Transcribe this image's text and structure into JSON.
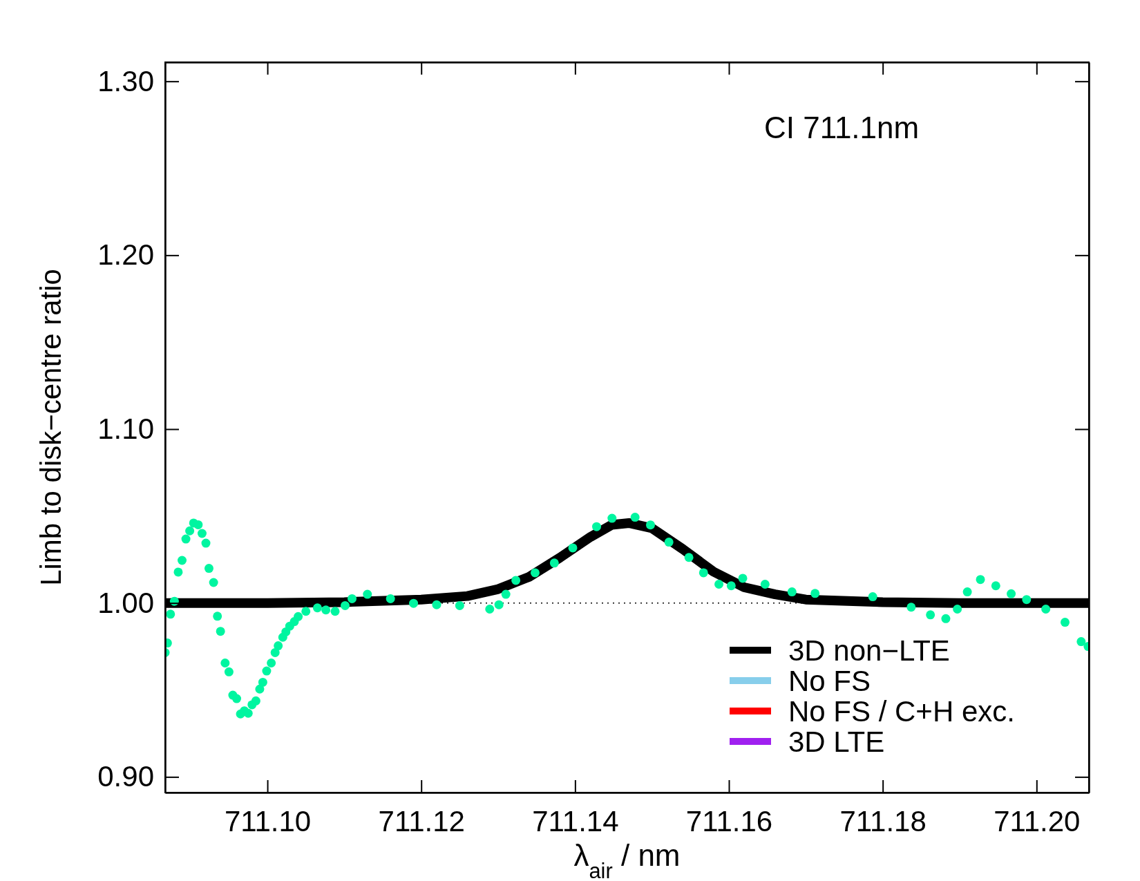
{
  "chart_data": {
    "type": "line",
    "xlabel": "λ$_{air}$ / nm",
    "ylabel": "Limb to disk−centre ratio",
    "annotations": [
      "CI 711.1nm"
    ],
    "xlim": [
      711.0867,
      711.2068
    ],
    "ylim": [
      0.891,
      1.311
    ],
    "xticks": [
      {
        "value": 711.1,
        "label": "711.10"
      },
      {
        "value": 711.12,
        "label": "711.12"
      },
      {
        "value": 711.14,
        "label": "711.14"
      },
      {
        "value": 711.16,
        "label": "711.16"
      },
      {
        "value": 711.18,
        "label": "711.18"
      },
      {
        "value": 711.2,
        "label": "711.20"
      }
    ],
    "yticks": [
      {
        "value": 0.9,
        "label": "0.90"
      },
      {
        "value": 1.0,
        "label": "1.00"
      },
      {
        "value": 1.1,
        "label": "1.10"
      },
      {
        "value": 1.2,
        "label": "1.20"
      },
      {
        "value": 1.3,
        "label": "1.30"
      }
    ],
    "legend": "bottom right",
    "grid": false,
    "ref_lines": [
      {
        "axis": "y",
        "value": 1.0,
        "color": "#000000",
        "line_style": "dotted"
      }
    ],
    "series": [
      {
        "name": "3D non−LTE",
        "color": "#000000",
        "x": [
          711.0867,
          711.1,
          711.11,
          711.12,
          711.126,
          711.13,
          711.134,
          711.138,
          711.142,
          711.1448,
          711.147,
          711.15,
          711.154,
          711.158,
          711.162,
          711.166,
          711.17,
          711.18,
          711.19,
          711.2068
        ],
        "values": [
          1.0,
          1.0,
          1.0005,
          1.002,
          1.004,
          1.008,
          1.015,
          1.026,
          1.038,
          1.045,
          1.046,
          1.043,
          1.031,
          1.018,
          1.009,
          1.005,
          1.002,
          1.0005,
          1.0,
          1.0
        ]
      },
      {
        "name": "No FS",
        "color": "#87ceeb"
      },
      {
        "name": "No FS / C+H exc.",
        "color": "#ff0000"
      },
      {
        "name": "3D LTE",
        "color": "#a020f0"
      },
      {
        "color": "#00f5a0",
        "type": "scatter",
        "marker": "circle",
        "x": [
          711.0867,
          711.087,
          711.0874,
          711.0879,
          711.0884,
          711.0889,
          711.0894,
          711.0899,
          711.0904,
          711.091,
          711.0915,
          711.092,
          711.0924,
          711.093,
          711.0935,
          711.0939,
          711.0945,
          711.095,
          711.0955,
          711.096,
          711.0965,
          711.097,
          711.0975,
          711.098,
          711.0985,
          711.099,
          711.0994,
          711.0999,
          711.1005,
          711.101,
          711.1014,
          711.102,
          711.1024,
          711.1029,
          711.1035,
          711.104,
          711.105,
          711.1065,
          711.1076,
          711.1088,
          711.1101,
          711.111,
          711.113,
          711.116,
          711.119,
          711.122,
          711.125,
          711.1289,
          711.1301,
          711.131,
          711.1323,
          711.1348,
          711.1373,
          711.1397,
          711.1428,
          711.1448,
          711.1478,
          711.1498,
          711.1522,
          711.1548,
          711.1567,
          711.1587,
          711.1603,
          711.1618,
          711.1647,
          711.1682,
          711.1712,
          711.1787,
          711.1837,
          711.1862,
          711.1882,
          711.1897,
          711.191,
          711.1927,
          711.1947,
          711.1967,
          711.1987,
          711.2012,
          711.2037,
          711.2058,
          711.2067
        ],
        "values": [
          0.9715,
          0.977,
          0.9936,
          1.001,
          1.0178,
          1.0245,
          1.0368,
          1.0415,
          1.046,
          1.045,
          1.04,
          1.0344,
          1.0199,
          1.0118,
          0.9924,
          0.9837,
          0.9655,
          0.9604,
          0.947,
          0.945,
          0.9362,
          0.938,
          0.9366,
          0.9415,
          0.9437,
          0.9505,
          0.9544,
          0.9609,
          0.9655,
          0.9715,
          0.9754,
          0.9803,
          0.9834,
          0.9867,
          0.9893,
          0.9922,
          0.9952,
          0.9972,
          0.996,
          0.9952,
          0.9985,
          1.0025,
          1.005,
          1.0025,
          0.9998,
          0.999,
          0.9985,
          0.9965,
          0.999,
          1.005,
          1.013,
          1.0174,
          1.023,
          1.0317,
          1.0439,
          1.0487,
          1.0493,
          1.0449,
          1.035,
          1.0262,
          1.0174,
          1.0108,
          1.0099,
          1.0142,
          1.0108,
          1.0064,
          1.0055,
          1.0036,
          0.9976,
          0.9932,
          0.991,
          0.9965,
          1.0064,
          1.0135,
          1.0099,
          1.0053,
          1.002,
          0.9965,
          0.9889,
          0.9778,
          0.975
        ]
      }
    ]
  }
}
